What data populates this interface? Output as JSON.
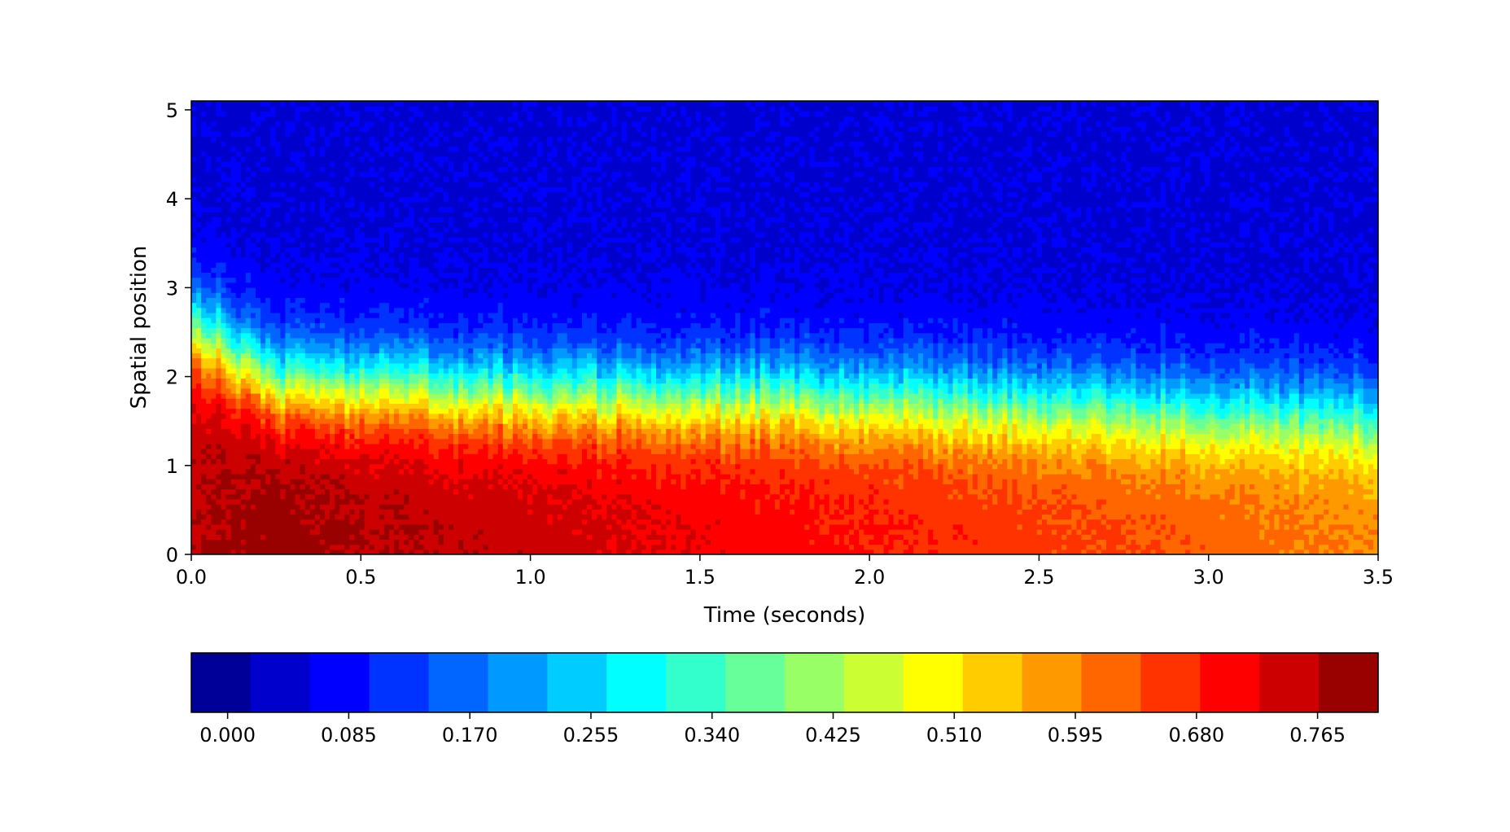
{
  "chart_data": {
    "type": "heatmap",
    "title": "",
    "xlabel": "Time (seconds)",
    "ylabel": "Spatial position",
    "xlim": [
      0.0,
      3.5
    ],
    "ylim": [
      0.0,
      5.1
    ],
    "x_ticks": [
      "0.0",
      "0.5",
      "1.0",
      "1.5",
      "2.0",
      "2.5",
      "3.0",
      "3.5"
    ],
    "y_ticks": [
      "0",
      "1",
      "2",
      "3",
      "4",
      "5"
    ],
    "colormap": "jet",
    "colorbar": {
      "orientation": "horizontal",
      "placement": "bottom",
      "range": [
        -0.0255,
        0.8075
      ],
      "ticks": [
        "0.000",
        "0.085",
        "0.170",
        "0.255",
        "0.340",
        "0.425",
        "0.510",
        "0.595",
        "0.680",
        "0.765"
      ],
      "levels": 20
    },
    "field": {
      "description_values": "value at spatial position y and time t",
      "profile_time": [
        0.0,
        0.25,
        0.5,
        1.0,
        1.5,
        2.0,
        2.5,
        3.0,
        3.5
      ],
      "value_at_y0": [
        0.76,
        0.79,
        0.77,
        0.75,
        0.72,
        0.69,
        0.66,
        0.63,
        0.6
      ],
      "half_value_position": [
        2.6,
        1.9,
        1.9,
        1.8,
        1.8,
        1.75,
        1.7,
        1.6,
        1.55
      ],
      "background_value": 0.05
    },
    "grid": false
  }
}
